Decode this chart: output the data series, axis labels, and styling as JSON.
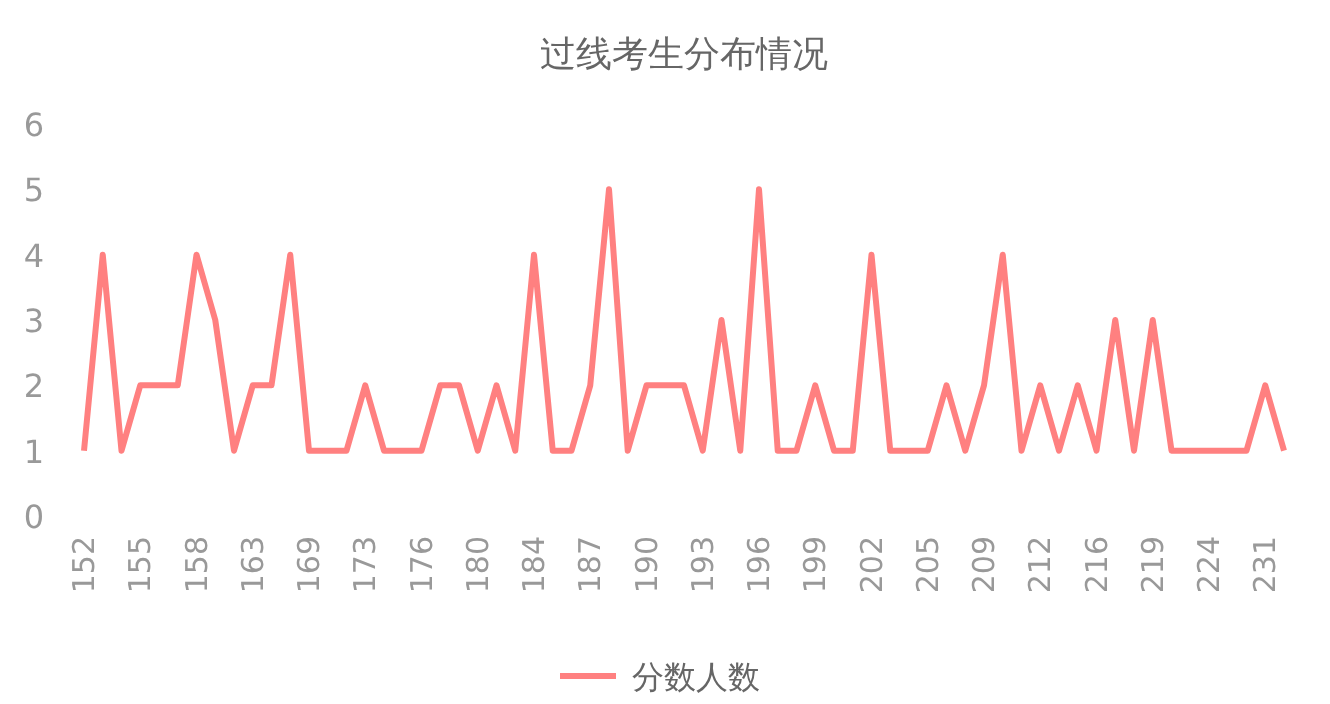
{
  "chart_data": {
    "type": "line",
    "title": "过线考生分布情况",
    "categories": [
      "152",
      null,
      null,
      "155",
      null,
      null,
      "158",
      null,
      null,
      "163",
      null,
      null,
      "169",
      null,
      null,
      "173",
      null,
      null,
      "176",
      null,
      null,
      "180",
      null,
      null,
      "184",
      null,
      null,
      "187",
      null,
      null,
      "190",
      null,
      null,
      "193",
      null,
      null,
      "196",
      null,
      null,
      "199",
      null,
      null,
      "202",
      null,
      null,
      "205",
      null,
      null,
      "209",
      null,
      null,
      "212",
      null,
      null,
      "216",
      null,
      null,
      "219",
      null,
      null,
      "224",
      null,
      null,
      "231",
      null
    ],
    "series": [
      {
        "name": "分数人数",
        "color": "#ff8080",
        "values": [
          1,
          4,
          1,
          2,
          2,
          2,
          4,
          3,
          1,
          2,
          2,
          4,
          1,
          1,
          1,
          2,
          1,
          1,
          1,
          2,
          2,
          1,
          2,
          1,
          4,
          1,
          1,
          2,
          5,
          1,
          2,
          2,
          2,
          1,
          3,
          1,
          5,
          1,
          1,
          2,
          1,
          1,
          4,
          1,
          1,
          1,
          2,
          1,
          2,
          4,
          1,
          2,
          1,
          2,
          1,
          3,
          1,
          3,
          1,
          1,
          1,
          1,
          1,
          2,
          1
        ]
      }
    ],
    "ylim": [
      0,
      6
    ],
    "yticks": [
      0,
      1,
      2,
      3,
      4,
      5,
      6
    ],
    "grid": false,
    "legend": "bottom",
    "marker": "none",
    "line_style": "solid"
  }
}
